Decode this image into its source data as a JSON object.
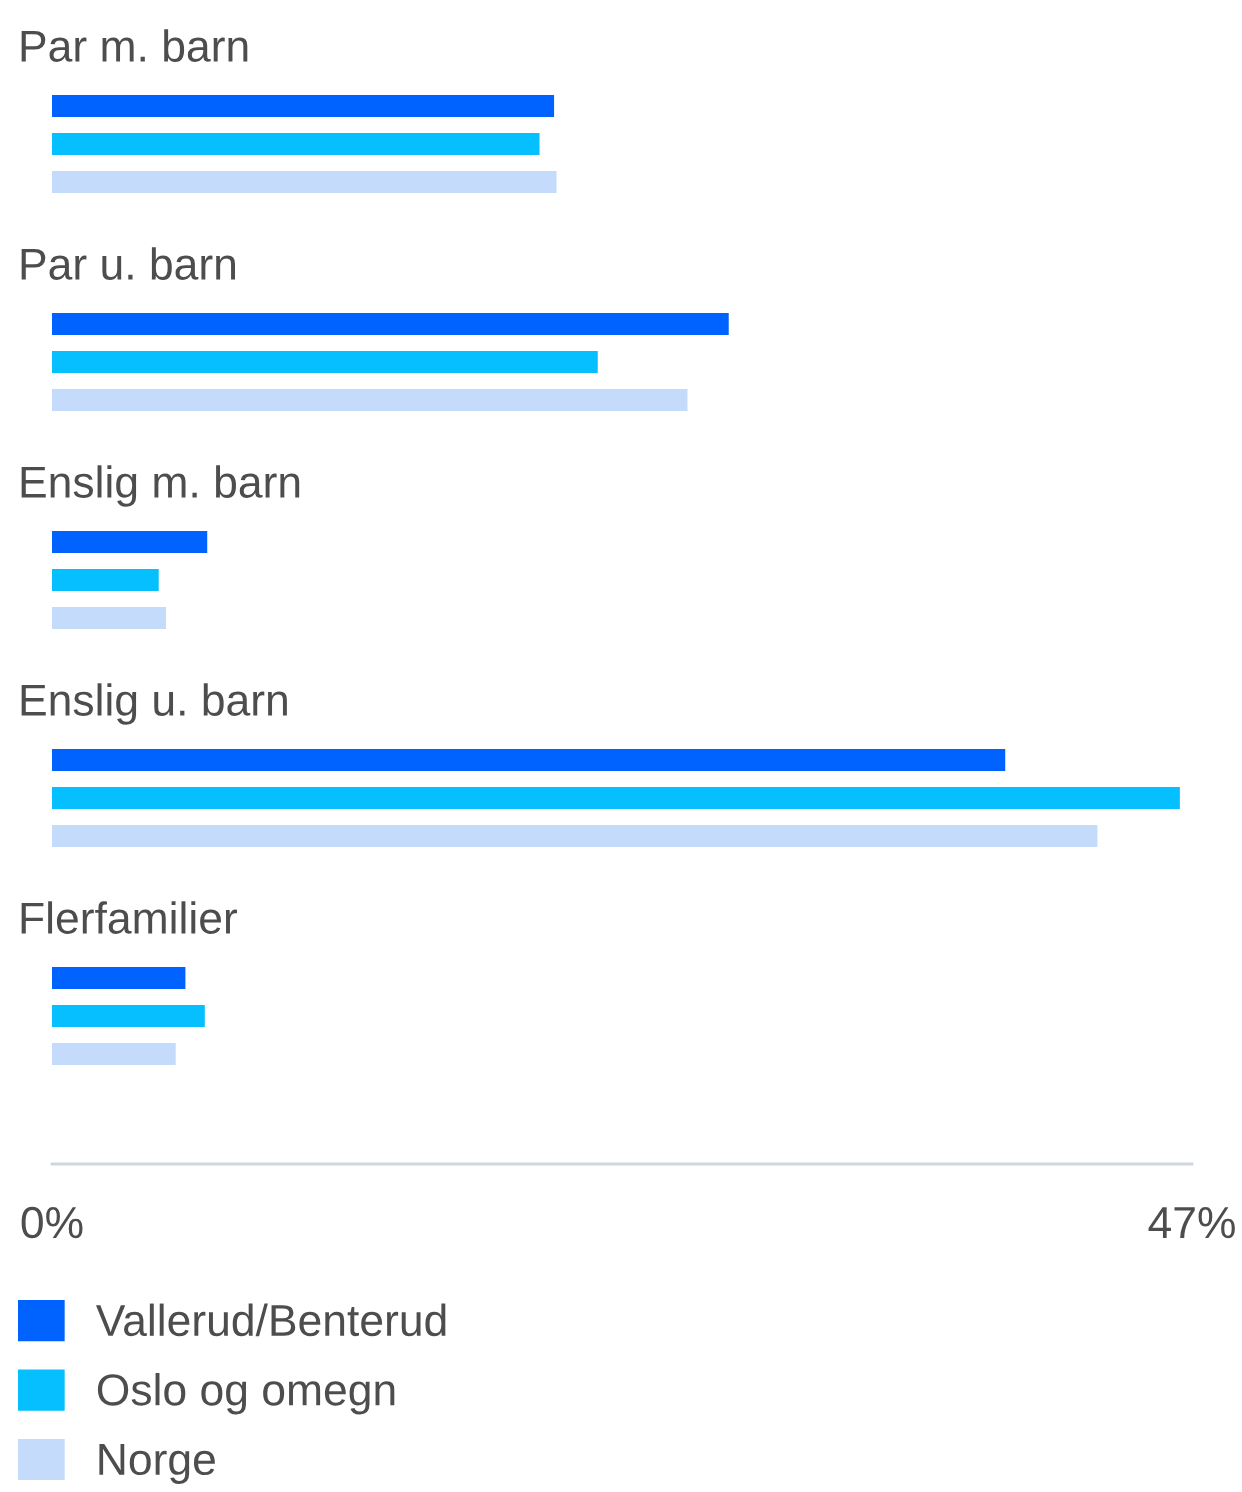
{
  "chart_data": {
    "type": "bar",
    "orientation": "horizontal",
    "categories": [
      "Par m. barn",
      "Par u. barn",
      "Enslig m. barn",
      "Enslig u. barn",
      "Flerfamilier"
    ],
    "series": [
      {
        "name": "Vallerud/Benterud",
        "color": "#0062ff",
        "values": [
          20.7,
          27.9,
          6.4,
          39.3,
          5.5
        ]
      },
      {
        "name": "Oslo og omegn",
        "color": "#05bffe",
        "values": [
          20.1,
          22.5,
          4.4,
          46.5,
          6.3
        ]
      },
      {
        "name": "Norge",
        "color": "#c4dbfc",
        "values": [
          20.8,
          26.2,
          4.7,
          43.1,
          5.1
        ]
      }
    ],
    "xlim": [
      0,
      47
    ],
    "xticks": [
      {
        "value": 0,
        "label": "0%"
      },
      {
        "value": 47,
        "label": "47%"
      }
    ],
    "grid": false,
    "legend": "bottom"
  }
}
